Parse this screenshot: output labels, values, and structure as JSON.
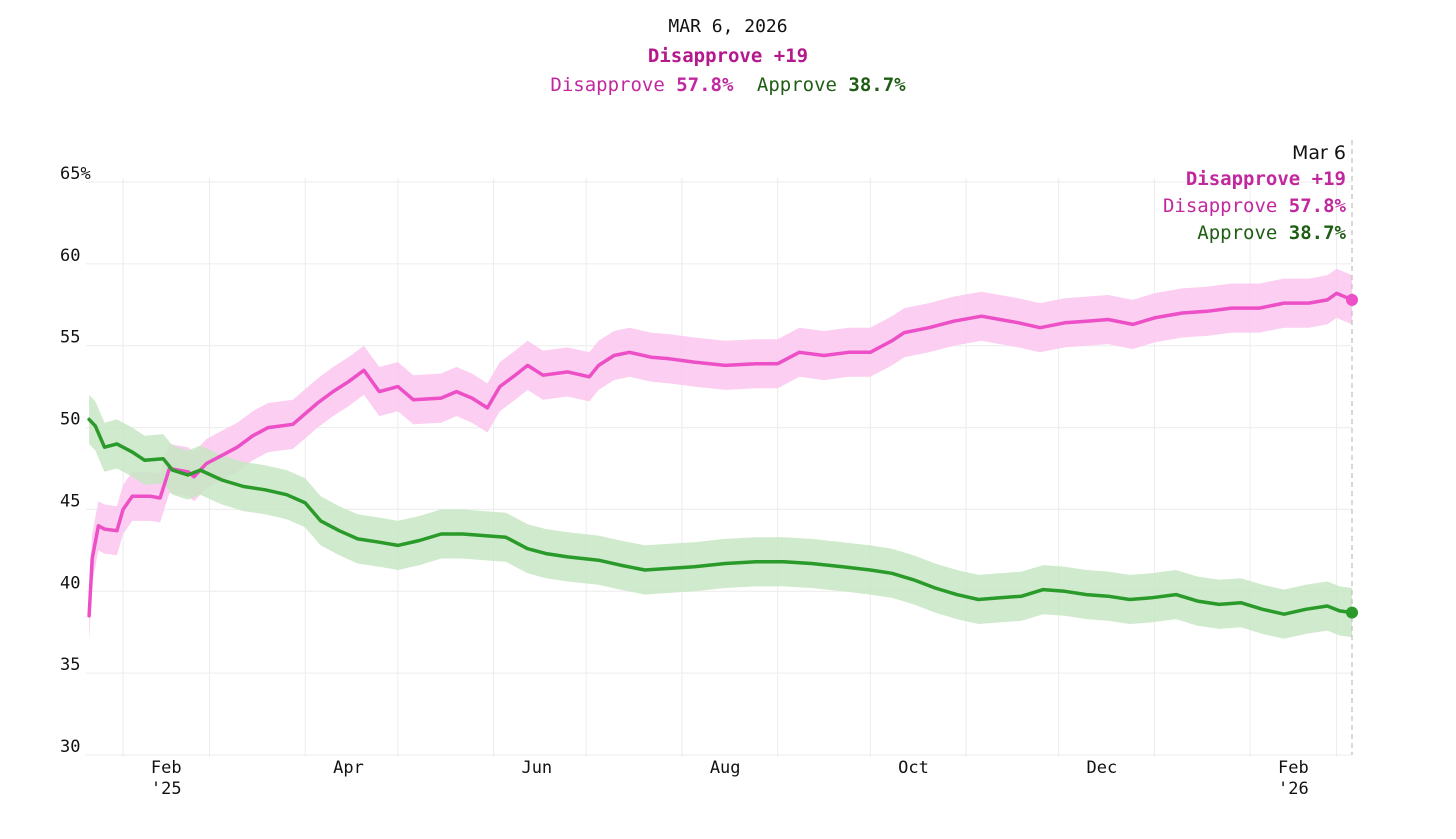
{
  "header": {
    "date": "MAR 6, 2026",
    "margin": "Disapprove +19",
    "disapprove_label": "Disapprove",
    "disapprove_value": "57.8%",
    "approve_label": "Approve",
    "approve_value": "38.7%"
  },
  "tooltip": {
    "date": "Mar 6",
    "margin": "Disapprove +19",
    "disapprove_label": "Disapprove",
    "disapprove_value": "57.8%",
    "approve_label": "Approve",
    "approve_value": "38.7%"
  },
  "colors": {
    "disapprove_line": "#ec4fc6",
    "disapprove_band": "#fbc6ef",
    "approve_line": "#2a9a2a",
    "approve_band": "#c7e6c3",
    "grid": "#ececec"
  },
  "chart_data": {
    "type": "line",
    "x_start": "2025-01-20",
    "x_end": "2026-03-06",
    "ylim": [
      30,
      65
    ],
    "y_ticks": [
      "65%",
      "60",
      "55",
      "50",
      "45",
      "40",
      "35",
      "30"
    ],
    "y_tick_values": [
      65,
      60,
      55,
      50,
      45,
      40,
      35,
      30
    ],
    "x_month_gridlines": [
      "2025-02-01",
      "2025-03-01",
      "2025-04-01",
      "2025-05-01",
      "2025-06-01",
      "2025-07-01",
      "2025-08-01",
      "2025-09-01",
      "2025-10-01",
      "2025-11-01",
      "2025-12-01",
      "2026-01-01",
      "2026-02-01",
      "2026-03-01"
    ],
    "x_ticks": [
      {
        "label": "Feb",
        "year": "'25",
        "date": "2025-02-15"
      },
      {
        "label": "Apr",
        "year": "",
        "date": "2025-04-15"
      },
      {
        "label": "Jun",
        "year": "",
        "date": "2025-06-15"
      },
      {
        "label": "Aug",
        "year": "",
        "date": "2025-08-15"
      },
      {
        "label": "Oct",
        "year": "",
        "date": "2025-10-15"
      },
      {
        "label": "Dec",
        "year": "",
        "date": "2025-12-15"
      },
      {
        "label": "Feb",
        "year": "'26",
        "date": "2026-02-15"
      }
    ],
    "band_width": 1.5,
    "series": [
      {
        "name": "Disapprove",
        "points": [
          [
            "2025-01-21",
            38.5
          ],
          [
            "2025-01-22",
            42
          ],
          [
            "2025-01-24",
            44
          ],
          [
            "2025-01-26",
            43.8
          ],
          [
            "2025-01-30",
            43.7
          ],
          [
            "2025-02-01",
            45
          ],
          [
            "2025-02-04",
            45.8
          ],
          [
            "2025-02-10",
            45.8
          ],
          [
            "2025-02-13",
            45.7
          ],
          [
            "2025-02-16",
            47.5
          ],
          [
            "2025-02-22",
            47.3
          ],
          [
            "2025-02-24",
            47
          ],
          [
            "2025-02-28",
            47.8
          ],
          [
            "2025-03-05",
            48.3
          ],
          [
            "2025-03-10",
            48.8
          ],
          [
            "2025-03-15",
            49.5
          ],
          [
            "2025-03-20",
            50
          ],
          [
            "2025-03-28",
            50.2
          ],
          [
            "2025-04-05",
            51.5
          ],
          [
            "2025-04-10",
            52.2
          ],
          [
            "2025-04-15",
            52.8
          ],
          [
            "2025-04-20",
            53.5
          ],
          [
            "2025-04-25",
            52.2
          ],
          [
            "2025-05-01",
            52.5
          ],
          [
            "2025-05-06",
            51.7
          ],
          [
            "2025-05-15",
            51.8
          ],
          [
            "2025-05-20",
            52.2
          ],
          [
            "2025-05-25",
            51.8
          ],
          [
            "2025-05-30",
            51.2
          ],
          [
            "2025-06-03",
            52.5
          ],
          [
            "2025-06-08",
            53.2
          ],
          [
            "2025-06-12",
            53.8
          ],
          [
            "2025-06-17",
            53.2
          ],
          [
            "2025-06-25",
            53.4
          ],
          [
            "2025-07-02",
            53.1
          ],
          [
            "2025-07-05",
            53.8
          ],
          [
            "2025-07-10",
            54.4
          ],
          [
            "2025-07-15",
            54.6
          ],
          [
            "2025-07-22",
            54.3
          ],
          [
            "2025-07-28",
            54.2
          ],
          [
            "2025-08-05",
            54
          ],
          [
            "2025-08-15",
            53.8
          ],
          [
            "2025-08-25",
            53.9
          ],
          [
            "2025-09-01",
            53.9
          ],
          [
            "2025-09-08",
            54.6
          ],
          [
            "2025-09-16",
            54.4
          ],
          [
            "2025-09-24",
            54.6
          ],
          [
            "2025-10-01",
            54.6
          ],
          [
            "2025-10-08",
            55.3
          ],
          [
            "2025-10-12",
            55.8
          ],
          [
            "2025-10-20",
            56.1
          ],
          [
            "2025-10-28",
            56.5
          ],
          [
            "2025-11-06",
            56.8
          ],
          [
            "2025-11-12",
            56.6
          ],
          [
            "2025-11-18",
            56.4
          ],
          [
            "2025-11-25",
            56.1
          ],
          [
            "2025-12-03",
            56.4
          ],
          [
            "2025-12-10",
            56.5
          ],
          [
            "2025-12-17",
            56.6
          ],
          [
            "2025-12-25",
            56.3
          ],
          [
            "2026-01-01",
            56.7
          ],
          [
            "2026-01-10",
            57
          ],
          [
            "2026-01-18",
            57.1
          ],
          [
            "2026-01-26",
            57.3
          ],
          [
            "2026-02-04",
            57.3
          ],
          [
            "2026-02-12",
            57.6
          ],
          [
            "2026-02-20",
            57.6
          ],
          [
            "2026-02-26",
            57.8
          ],
          [
            "2026-03-01",
            58.2
          ],
          [
            "2026-03-06",
            57.8
          ]
        ]
      },
      {
        "name": "Approve",
        "points": [
          [
            "2025-01-21",
            50.5
          ],
          [
            "2025-01-23",
            50.1
          ],
          [
            "2025-01-26",
            48.8
          ],
          [
            "2025-01-30",
            49
          ],
          [
            "2025-02-04",
            48.5
          ],
          [
            "2025-02-08",
            48
          ],
          [
            "2025-02-14",
            48.1
          ],
          [
            "2025-02-17",
            47.4
          ],
          [
            "2025-02-22",
            47.1
          ],
          [
            "2025-02-26",
            47.4
          ],
          [
            "2025-03-05",
            46.8
          ],
          [
            "2025-03-12",
            46.4
          ],
          [
            "2025-03-19",
            46.2
          ],
          [
            "2025-03-26",
            45.9
          ],
          [
            "2025-04-01",
            45.4
          ],
          [
            "2025-04-06",
            44.3
          ],
          [
            "2025-04-12",
            43.7
          ],
          [
            "2025-04-18",
            43.2
          ],
          [
            "2025-04-25",
            43
          ],
          [
            "2025-05-01",
            42.8
          ],
          [
            "2025-05-08",
            43.1
          ],
          [
            "2025-05-15",
            43.5
          ],
          [
            "2025-05-22",
            43.5
          ],
          [
            "2025-05-29",
            43.4
          ],
          [
            "2025-06-05",
            43.3
          ],
          [
            "2025-06-12",
            42.6
          ],
          [
            "2025-06-18",
            42.3
          ],
          [
            "2025-06-25",
            42.1
          ],
          [
            "2025-07-05",
            41.9
          ],
          [
            "2025-07-12",
            41.6
          ],
          [
            "2025-07-20",
            41.3
          ],
          [
            "2025-07-28",
            41.4
          ],
          [
            "2025-08-05",
            41.5
          ],
          [
            "2025-08-15",
            41.7
          ],
          [
            "2025-08-25",
            41.8
          ],
          [
            "2025-09-03",
            41.8
          ],
          [
            "2025-09-12",
            41.7
          ],
          [
            "2025-09-22",
            41.5
          ],
          [
            "2025-10-01",
            41.3
          ],
          [
            "2025-10-08",
            41.1
          ],
          [
            "2025-10-15",
            40.7
          ],
          [
            "2025-10-22",
            40.2
          ],
          [
            "2025-10-29",
            39.8
          ],
          [
            "2025-11-05",
            39.5
          ],
          [
            "2025-11-12",
            39.6
          ],
          [
            "2025-11-19",
            39.7
          ],
          [
            "2025-11-26",
            40.1
          ],
          [
            "2025-12-03",
            40
          ],
          [
            "2025-12-10",
            39.8
          ],
          [
            "2025-12-17",
            39.7
          ],
          [
            "2025-12-24",
            39.5
          ],
          [
            "2025-12-31",
            39.6
          ],
          [
            "2026-01-08",
            39.8
          ],
          [
            "2026-01-15",
            39.4
          ],
          [
            "2026-01-22",
            39.2
          ],
          [
            "2026-01-29",
            39.3
          ],
          [
            "2026-02-05",
            38.9
          ],
          [
            "2026-02-12",
            38.6
          ],
          [
            "2026-02-19",
            38.9
          ],
          [
            "2026-02-26",
            39.1
          ],
          [
            "2026-03-02",
            38.8
          ],
          [
            "2026-03-06",
            38.7
          ]
        ]
      }
    ]
  }
}
